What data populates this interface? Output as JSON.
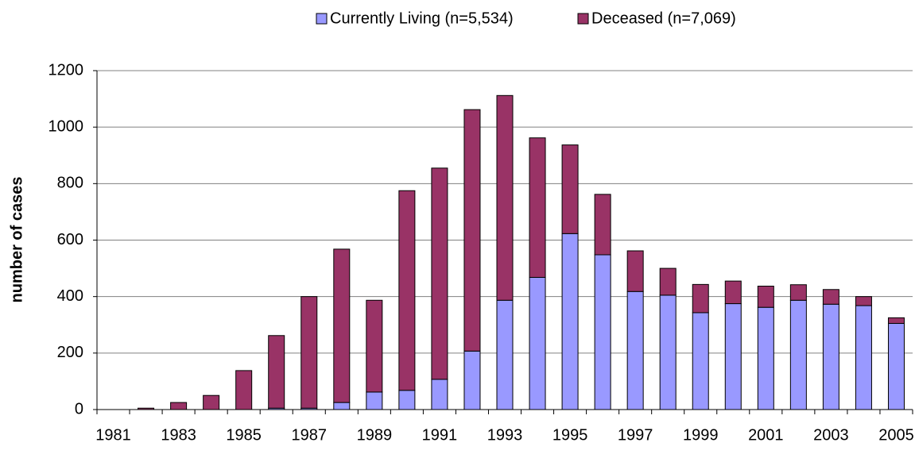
{
  "chart_data": {
    "type": "stacked_bar",
    "y_label": "number of cases",
    "categories": [
      "1981",
      null,
      "1983",
      null,
      "1985",
      null,
      "1987",
      null,
      "1989",
      null,
      "1991",
      null,
      "1993",
      null,
      "1995",
      null,
      "1997",
      null,
      "1999",
      null,
      "2001",
      null,
      "2003",
      null,
      "2005"
    ],
    "series": [
      {
        "name": "Currently Living (n=5,534)",
        "color": "#9999ff",
        "values": [
          0,
          0,
          0,
          0,
          0,
          5,
          5,
          25,
          62,
          68,
          107,
          207,
          387,
          468,
          623,
          548,
          418,
          405,
          343,
          375,
          362,
          387,
          373,
          368,
          305
        ]
      },
      {
        "name": "Deceased (n=7,069)",
        "color": "#993366",
        "values": [
          0,
          5,
          25,
          50,
          138,
          257,
          395,
          543,
          325,
          707,
          748,
          855,
          725,
          494,
          314,
          214,
          144,
          95,
          100,
          80,
          75,
          55,
          52,
          32,
          20
        ]
      }
    ],
    "ylim": [
      0,
      1200
    ],
    "yticks": [
      0,
      200,
      400,
      600,
      800,
      1000,
      1200
    ],
    "grid": true
  }
}
